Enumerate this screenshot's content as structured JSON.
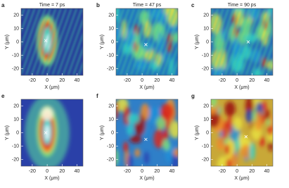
{
  "panels": [
    {
      "label": "a",
      "title": "Time = 7 ps",
      "xlabel": "X (μm)",
      "ylabel": "Y (μm)",
      "xlim": [
        -35,
        48
      ],
      "ylim": [
        -25,
        25
      ],
      "xticks": [
        -20,
        0,
        20,
        40
      ],
      "yticks": [
        -20,
        -10,
        0,
        10,
        20
      ]
    },
    {
      "label": "b",
      "title": "Time = 47 ps",
      "xlabel": "X (μm)",
      "ylabel": "Y (μm)",
      "xlim": [
        -35,
        48
      ],
      "ylim": [
        -25,
        25
      ],
      "xticks": [
        -20,
        0,
        20,
        40
      ],
      "yticks": [
        -20,
        -10,
        0,
        10,
        20
      ]
    },
    {
      "label": "c",
      "title": "Time = 90 ps",
      "xlabel": "X (μm)",
      "ylabel": "Y (μm)",
      "xlim": [
        -35,
        48
      ],
      "ylim": [
        -25,
        25
      ],
      "xticks": [
        -20,
        0,
        20,
        40
      ],
      "yticks": [
        -20,
        -10,
        0,
        10,
        20
      ]
    },
    {
      "label": "e",
      "xlabel": "X (μm)",
      "ylabel": "Y (μm)",
      "xlim": [
        -35,
        48
      ],
      "ylim": [
        -25,
        25
      ],
      "xticks": [
        -20,
        0,
        20,
        40
      ],
      "yticks": [
        -20,
        -10,
        0,
        10,
        20
      ]
    },
    {
      "label": "f",
      "xlabel": "X (μm)",
      "ylabel": "Y (μm)",
      "xlim": [
        -35,
        48
      ],
      "ylim": [
        -25,
        25
      ],
      "xticks": [
        -20,
        0,
        20,
        40
      ],
      "yticks": [
        -20,
        -10,
        0,
        10,
        20
      ]
    },
    {
      "label": "g",
      "xlabel": "X (μm)",
      "ylabel": "Y (μm)",
      "xlim": [
        -35,
        48
      ],
      "ylim": [
        -25,
        25
      ],
      "xticks": [
        -20,
        0,
        20,
        40
      ],
      "yticks": [
        -20,
        -10,
        0,
        10,
        20
      ]
    }
  ]
}
